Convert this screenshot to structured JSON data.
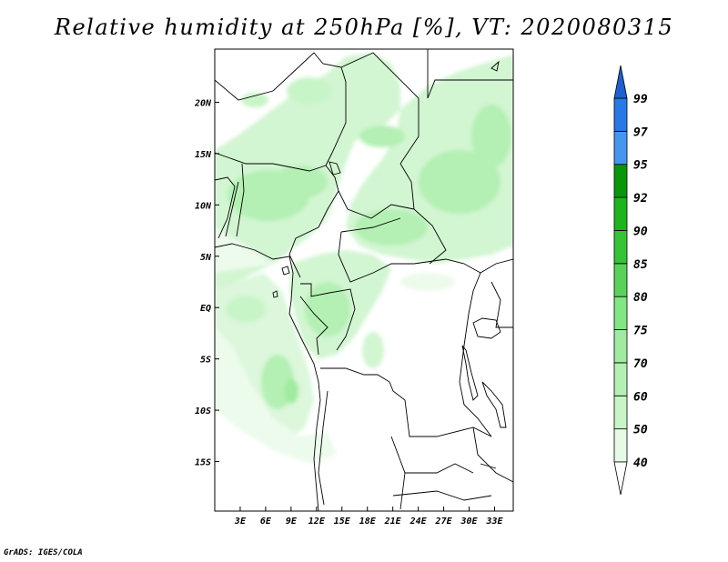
{
  "title": "Relative humidity at 250hPa [%], VT: 2020080315",
  "credit": "GrADS: IGES/COLA",
  "map": {
    "region": "Central Africa",
    "lon_range": [
      0,
      35
    ],
    "lat_range": [
      -20,
      25
    ],
    "lon_ticks": [
      "3E",
      "6E",
      "9E",
      "12E",
      "15E",
      "18E",
      "21E",
      "24E",
      "27E",
      "30E",
      "33E"
    ],
    "lat_ticks": [
      "20N",
      "15N",
      "10N",
      "5N",
      "EQ",
      "5S",
      "10S",
      "15S"
    ],
    "field_color_ramp": [
      "#e6fae6",
      "#c8f5c8",
      "#a0eba0",
      "#82e682",
      "#5ad25a",
      "#37c337",
      "#1eb41e",
      "#0a960a",
      "#3f96f0",
      "#2a78e6",
      "#1b5fd2"
    ]
  },
  "colorbar": {
    "levels": [
      "40",
      "50",
      "60",
      "70",
      "75",
      "80",
      "85",
      "90",
      "92",
      "95",
      "97",
      "99"
    ],
    "colors": [
      "#ffffff",
      "#e6fae6",
      "#c8f5c8",
      "#b4f0b4",
      "#a0eba0",
      "#82e682",
      "#5ad25a",
      "#37c337",
      "#1eb41e",
      "#0a960a",
      "#4696f0",
      "#2878e6",
      "#1e5fd2"
    ]
  }
}
